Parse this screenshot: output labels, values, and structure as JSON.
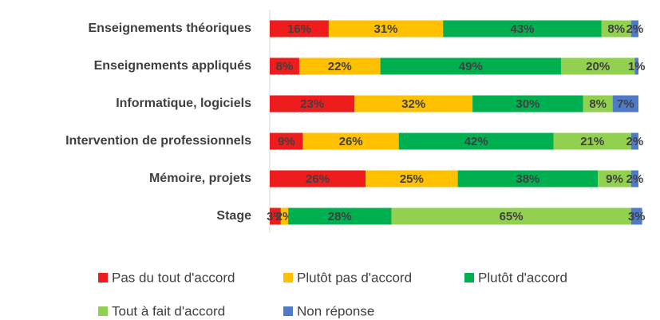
{
  "chart_data": {
    "type": "stacked-bar",
    "categories": [
      "Enseignements théoriques",
      "Enseignements appliqués",
      "Informatique, logiciels",
      "Intervention de professionnels",
      "Mémoire, projets",
      "Stage"
    ],
    "series": [
      {
        "name": "Pas du tout d'accord",
        "color": "#ee1c1c",
        "values": [
          16,
          8,
          23,
          9,
          26,
          3
        ],
        "value_labels": [
          "16%",
          "8%",
          "23%",
          "9%",
          "26%",
          "3%"
        ]
      },
      {
        "name": "Plutôt pas d'accord",
        "color": "#ffc000",
        "values": [
          31,
          22,
          32,
          26,
          25,
          2
        ],
        "value_labels": [
          "31%",
          "22%",
          "32%",
          "26%",
          "25%",
          "2%"
        ]
      },
      {
        "name": "Plutôt d'accord",
        "color": "#00b050",
        "values": [
          43,
          49,
          30,
          42,
          38,
          28
        ],
        "value_labels": [
          "43%",
          "49%",
          "30%",
          "42%",
          "38%",
          "28%"
        ]
      },
      {
        "name": "Tout à fait d'accord",
        "color": "#92d050",
        "values": [
          8,
          20,
          8,
          21,
          9,
          65
        ],
        "value_labels": [
          "8%",
          "20%",
          "8%",
          "21%",
          "9%",
          "65%"
        ]
      },
      {
        "name": "Non réponse",
        "color": "#4f7ac7",
        "values": [
          2,
          1,
          7,
          2,
          2,
          3
        ],
        "value_labels": [
          "2%",
          "1%",
          "7%",
          "2%",
          "2%",
          "3%"
        ]
      }
    ],
    "legend": "bottom"
  }
}
